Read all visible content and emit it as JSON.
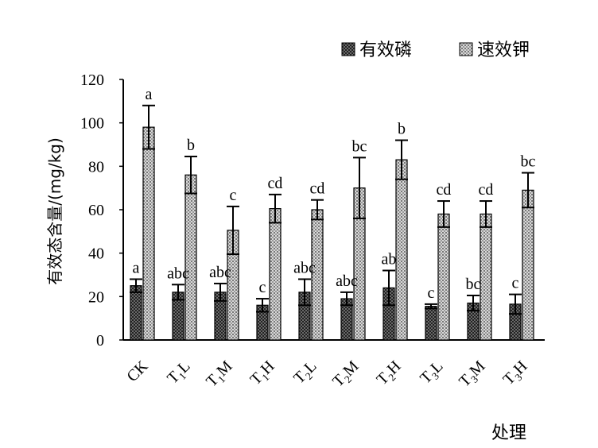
{
  "chart_data": {
    "type": "bar",
    "title": "",
    "xlabel": "处理",
    "ylabel": "有效态含量/(mg/kg)",
    "ylim": [
      0,
      120
    ],
    "yticks": [
      0,
      20,
      40,
      60,
      80,
      100,
      120
    ],
    "grid": false,
    "legend_position": "top-right",
    "categories": [
      {
        "base": "CK",
        "sub": ""
      },
      {
        "base": "T",
        "sub": "1",
        "suffix": "L"
      },
      {
        "base": "T",
        "sub": "1",
        "suffix": "M"
      },
      {
        "base": "T",
        "sub": "1",
        "suffix": "H"
      },
      {
        "base": "T",
        "sub": "2",
        "suffix": "L"
      },
      {
        "base": "T",
        "sub": "2",
        "suffix": "M"
      },
      {
        "base": "T",
        "sub": "2",
        "suffix": "H"
      },
      {
        "base": "T",
        "sub": "3",
        "suffix": "L"
      },
      {
        "base": "T",
        "sub": "3",
        "suffix": "M"
      },
      {
        "base": "T",
        "sub": "3",
        "suffix": "H"
      }
    ],
    "series": [
      {
        "name": "有效磷",
        "color": "#555555",
        "pattern": "dark-dots",
        "values": [
          25,
          22,
          22,
          16,
          22,
          19,
          24,
          15.5,
          17,
          16.5
        ],
        "errors": [
          3,
          3.5,
          4,
          3,
          6,
          3,
          8,
          1,
          3.5,
          4.5
        ],
        "letters": [
          "a",
          "abc",
          "abc",
          "c",
          "abc",
          "abc",
          "ab",
          "c",
          "bc",
          "c"
        ]
      },
      {
        "name": "速效钾",
        "color": "#bbbbbb",
        "pattern": "light-dots",
        "values": [
          98,
          76,
          50.5,
          60.5,
          60,
          70,
          83,
          58,
          58,
          69
        ],
        "errors": [
          10,
          8.5,
          11,
          6.5,
          4.5,
          14,
          9,
          6,
          6,
          8
        ],
        "letters": [
          "a",
          "b",
          "c",
          "cd",
          "cd",
          "bc",
          "b",
          "cd",
          "cd",
          "bc"
        ]
      }
    ]
  }
}
